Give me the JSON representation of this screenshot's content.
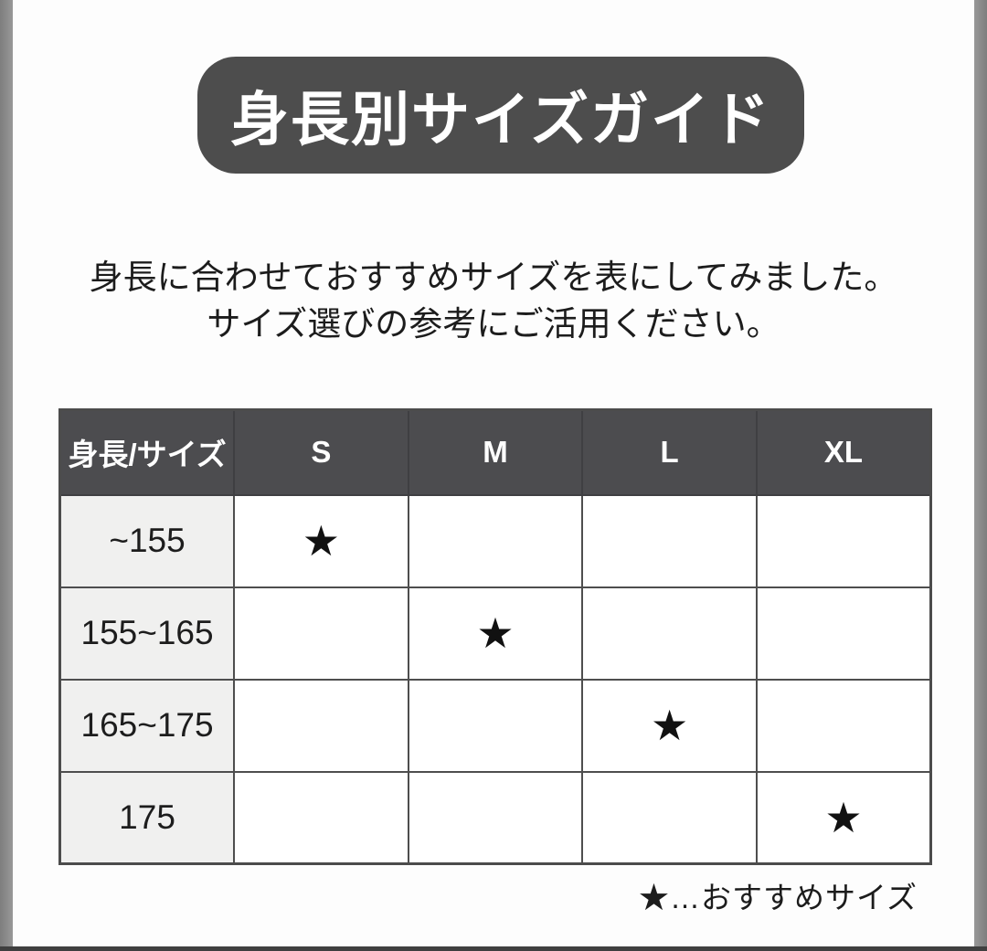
{
  "page": {
    "title": "身長別サイズガイド",
    "description": {
      "line1": "身長に合わせておすすめサイズを表にしてみました。",
      "line2": "サイズ選びの参考にご活用ください。"
    },
    "legend": "★…おすすめサイズ"
  },
  "table": {
    "header": [
      "身長/サイズ",
      "S",
      "M",
      "L",
      "XL"
    ],
    "rows": [
      {
        "label": "~155",
        "cells": [
          "★",
          "",
          "",
          ""
        ]
      },
      {
        "label": "155~165",
        "cells": [
          "",
          "★",
          "",
          ""
        ]
      },
      {
        "label": "165~175",
        "cells": [
          "",
          "",
          "★",
          ""
        ]
      },
      {
        "label": "175",
        "cells": [
          "",
          "",
          "",
          "★"
        ]
      }
    ]
  },
  "chart_data": {
    "type": "table",
    "title": "身長別サイズガイド",
    "columns": [
      "身長/サイズ",
      "S",
      "M",
      "L",
      "XL"
    ],
    "rows": [
      [
        "~155",
        "★",
        "",
        "",
        ""
      ],
      [
        "155~165",
        "",
        "★",
        "",
        ""
      ],
      [
        "165~175",
        "",
        "",
        "★",
        ""
      ],
      [
        "175",
        "",
        "",
        "",
        "★"
      ]
    ],
    "legend": "★…おすすめサイズ"
  },
  "colors": {
    "banner_bg": "#4d4d4d",
    "banner_text": "#ffffff",
    "header_bg": "#4c4c4f",
    "header_text": "#ffffff",
    "row_label_bg": "#f0f0ef",
    "cell_bg": "#ffffff",
    "border": "#4e4e4e",
    "side_bar": "#8c8c8c",
    "bottom_bar": "#3f3f3f",
    "body_text": "#1d1d1d"
  }
}
